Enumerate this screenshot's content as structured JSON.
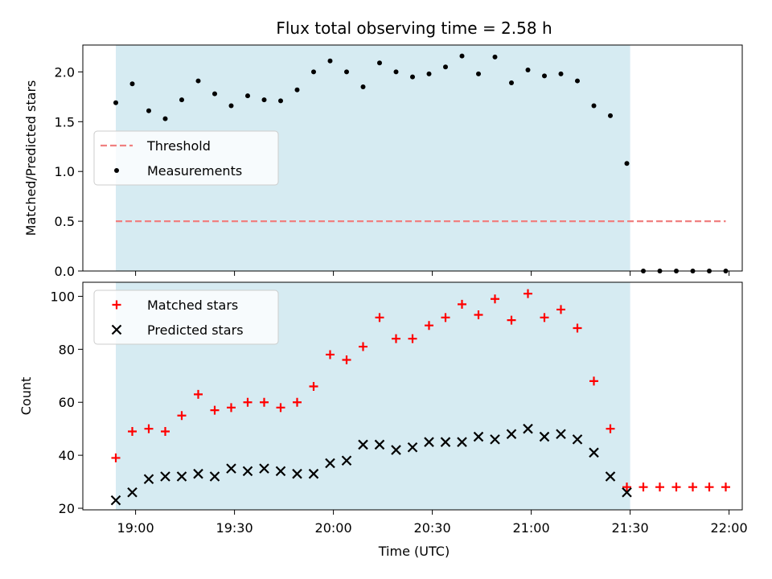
{
  "chart_data": [
    {
      "type": "scatter",
      "title": "Flux total observing time = 2.58 h",
      "xlabel": "",
      "ylabel": "Matched/Predicted stars",
      "xlim": [
        1124,
        1324
      ],
      "ylim": [
        0,
        2.27
      ],
      "yticks": [
        0.0,
        0.5,
        1.0,
        1.5,
        2.0
      ],
      "ytick_labels": [
        "0.0",
        "0.5",
        "1.0",
        "1.5",
        "2.0"
      ],
      "xticks": [
        1140,
        1170,
        1200,
        1230,
        1260,
        1290,
        1320
      ],
      "shaded_region": [
        1134,
        1290
      ],
      "legend": {
        "position": "center-left",
        "entries": [
          "Threshold",
          "Measurements"
        ]
      },
      "series": [
        {
          "name": "Threshold",
          "kind": "dashed-line",
          "color": "#f08080",
          "x": [
            1134,
            1319
          ],
          "y": [
            0.5,
            0.5
          ]
        },
        {
          "name": "Measurements",
          "kind": "dot",
          "color": "#000000",
          "x": [
            1134,
            1139,
            1144,
            1149,
            1154,
            1159,
            1164,
            1169,
            1174,
            1179,
            1184,
            1189,
            1194,
            1199,
            1204,
            1209,
            1214,
            1219,
            1224,
            1229,
            1234,
            1239,
            1244,
            1249,
            1254,
            1259,
            1264,
            1269,
            1274,
            1279,
            1284,
            1289,
            1294,
            1299,
            1304,
            1309,
            1314,
            1319
          ],
          "y": [
            1.69,
            1.88,
            1.61,
            1.53,
            1.72,
            1.91,
            1.78,
            1.66,
            1.76,
            1.72,
            1.71,
            1.82,
            2.0,
            2.11,
            2.0,
            1.85,
            2.09,
            2.0,
            1.95,
            1.98,
            2.05,
            2.16,
            1.98,
            2.15,
            1.89,
            2.02,
            1.96,
            1.98,
            1.91,
            1.66,
            1.56,
            1.08,
            0.0,
            0.0,
            0.0,
            0.0,
            0.0,
            0.0
          ]
        }
      ]
    },
    {
      "type": "scatter",
      "title": "",
      "xlabel": "Time (UTC)",
      "ylabel": "Count",
      "xlim": [
        1124,
        1324
      ],
      "ylim": [
        19.4,
        105.3
      ],
      "yticks": [
        20,
        40,
        60,
        80,
        100
      ],
      "ytick_labels": [
        "20",
        "40",
        "60",
        "80",
        "100"
      ],
      "xticks": [
        1140,
        1170,
        1200,
        1230,
        1260,
        1290,
        1320
      ],
      "xtick_labels": [
        "19:00",
        "19:30",
        "20:00",
        "20:30",
        "21:00",
        "21:30",
        "22:00"
      ],
      "shaded_region": [
        1134,
        1290
      ],
      "legend": {
        "position": "top-left",
        "entries": [
          "Matched stars",
          "Predicted stars"
        ]
      },
      "series": [
        {
          "name": "Matched stars",
          "kind": "plus",
          "color": "#ff0000",
          "x": [
            1134,
            1139,
            1144,
            1149,
            1154,
            1159,
            1164,
            1169,
            1174,
            1179,
            1184,
            1189,
            1194,
            1199,
            1204,
            1209,
            1214,
            1219,
            1224,
            1229,
            1234,
            1239,
            1244,
            1249,
            1254,
            1259,
            1264,
            1269,
            1274,
            1279,
            1284,
            1289,
            1294,
            1299,
            1304,
            1309,
            1314,
            1319
          ],
          "y": [
            39,
            49,
            50,
            49,
            55,
            63,
            57,
            58,
            60,
            60,
            58,
            60,
            66,
            78,
            76,
            81,
            92,
            84,
            84,
            89,
            92,
            97,
            93,
            99,
            91,
            101,
            92,
            95,
            88,
            68,
            50,
            28,
            28,
            28,
            28,
            28,
            28,
            28
          ]
        },
        {
          "name": "Predicted stars",
          "kind": "cross",
          "color": "#000000",
          "x": [
            1134,
            1139,
            1144,
            1149,
            1154,
            1159,
            1164,
            1169,
            1174,
            1179,
            1184,
            1189,
            1194,
            1199,
            1204,
            1209,
            1214,
            1219,
            1224,
            1229,
            1234,
            1239,
            1244,
            1249,
            1254,
            1259,
            1264,
            1269,
            1274,
            1279,
            1284,
            1289
          ],
          "y": [
            23,
            26,
            31,
            32,
            32,
            33,
            32,
            35,
            34,
            35,
            34,
            33,
            33,
            37,
            38,
            44,
            44,
            42,
            43,
            45,
            45,
            45,
            47,
            46,
            48,
            50,
            47,
            48,
            46,
            41,
            32,
            26
          ]
        }
      ]
    }
  ]
}
